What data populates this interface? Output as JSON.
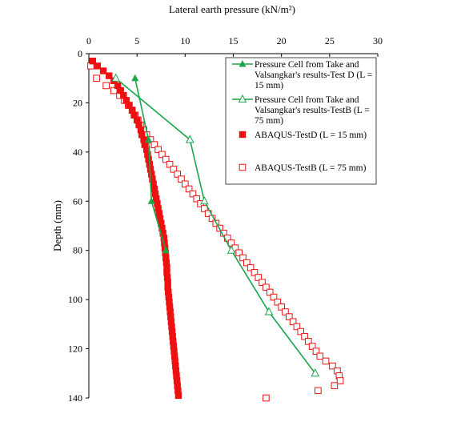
{
  "chart_data": {
    "type": "scatter",
    "xlabel": "Lateral earth pressure (kN/m²)",
    "ylabel": "Depth (mm)",
    "xlim": [
      0,
      30
    ],
    "ylim": [
      0,
      140
    ],
    "y_inverted": true,
    "x_axis_position": "top",
    "x_ticks": [
      "0",
      "5",
      "10",
      "15",
      "20",
      "25",
      "30"
    ],
    "y_ticks": [
      "0",
      "20",
      "40",
      "60",
      "80",
      "100",
      "120",
      "140"
    ],
    "grid": false,
    "legend_position": "top-right",
    "series": [
      {
        "name": "Pressure Cell from Take and Valsangkar's results-Test D (L = 15 mm)",
        "legend_lines": [
          "Pressure Cell from Take and",
          "Valsangkar's results-Test D (L =",
          "15 mm)"
        ],
        "marker": "filled-triangle",
        "line": true,
        "color": "#1aa64a",
        "points": [
          [
            4.8,
            10
          ],
          [
            6.2,
            35
          ],
          [
            6.5,
            60
          ],
          [
            8,
            80
          ]
        ]
      },
      {
        "name": "Pressure Cell from Take and Valsangkar's results-TestB (L = 75 mm)",
        "legend_lines": [
          "Pressure Cell from Take and",
          "Valsangkar's results-TestB (L =",
          "75 mm)"
        ],
        "marker": "open-triangle",
        "line": true,
        "color": "#1aa64a",
        "points": [
          [
            2.8,
            10
          ],
          [
            10.5,
            35
          ],
          [
            12,
            60
          ],
          [
            14.8,
            80
          ],
          [
            18.7,
            105
          ],
          [
            23.5,
            130
          ]
        ]
      },
      {
        "name": "ABAQUS-TestD (L = 15 mm)",
        "legend_lines": [
          "ABAQUS-TestD (L = 15 mm)"
        ],
        "marker": "filled-square",
        "line": false,
        "color": "#ee1111",
        "points": [
          [
            0.4,
            3
          ],
          [
            0.9,
            5
          ],
          [
            1.5,
            7
          ],
          [
            2.1,
            9
          ],
          [
            2.6,
            11
          ],
          [
            3.0,
            13
          ],
          [
            3.3,
            15
          ],
          [
            3.6,
            17
          ],
          [
            3.9,
            19
          ],
          [
            4.2,
            21
          ],
          [
            4.5,
            23
          ],
          [
            4.7,
            25
          ],
          [
            5.0,
            27
          ],
          [
            5.2,
            29
          ],
          [
            5.4,
            31
          ],
          [
            5.5,
            33
          ],
          [
            5.7,
            35
          ],
          [
            5.8,
            37
          ],
          [
            6.0,
            39
          ],
          [
            6.1,
            41
          ],
          [
            6.2,
            43
          ],
          [
            6.3,
            45
          ],
          [
            6.4,
            47
          ],
          [
            6.5,
            49
          ],
          [
            6.6,
            51
          ],
          [
            6.7,
            53
          ],
          [
            6.8,
            55
          ],
          [
            6.9,
            57
          ],
          [
            7.0,
            59
          ],
          [
            7.1,
            61
          ],
          [
            7.2,
            63
          ],
          [
            7.3,
            65
          ],
          [
            7.4,
            67
          ],
          [
            7.5,
            69
          ],
          [
            7.6,
            71
          ],
          [
            7.7,
            73
          ],
          [
            7.8,
            75
          ],
          [
            7.85,
            77
          ],
          [
            7.9,
            79
          ],
          [
            7.95,
            81
          ],
          [
            8.0,
            83
          ],
          [
            8.05,
            85
          ],
          [
            8.1,
            87
          ],
          [
            8.1,
            89
          ],
          [
            8.15,
            91
          ],
          [
            8.2,
            93
          ],
          [
            8.2,
            95
          ],
          [
            8.25,
            97
          ],
          [
            8.3,
            99
          ],
          [
            8.35,
            101
          ],
          [
            8.4,
            103
          ],
          [
            8.45,
            105
          ],
          [
            8.5,
            107
          ],
          [
            8.55,
            109
          ],
          [
            8.6,
            111
          ],
          [
            8.65,
            113
          ],
          [
            8.7,
            115
          ],
          [
            8.75,
            117
          ],
          [
            8.8,
            119
          ],
          [
            8.85,
            121
          ],
          [
            8.9,
            123
          ],
          [
            8.95,
            125
          ],
          [
            9.0,
            127
          ],
          [
            9.05,
            129
          ],
          [
            9.1,
            131
          ],
          [
            9.15,
            133
          ],
          [
            9.2,
            135
          ],
          [
            9.25,
            137
          ],
          [
            9.3,
            139
          ]
        ]
      },
      {
        "name": "ABAQUS-TestB (L = 75 mm)",
        "legend_lines": [
          "ABAQUS-TestB (L = 75 mm)"
        ],
        "marker": "open-square",
        "line": false,
        "color": "#ee1111",
        "points": [
          [
            0.2,
            5
          ],
          [
            0.8,
            10
          ],
          [
            1.8,
            13
          ],
          [
            2.6,
            15
          ],
          [
            3.2,
            17
          ],
          [
            3.7,
            19
          ],
          [
            4.1,
            21
          ],
          [
            4.5,
            23
          ],
          [
            4.8,
            25
          ],
          [
            5.1,
            27
          ],
          [
            5.4,
            29
          ],
          [
            5.7,
            31
          ],
          [
            6.0,
            33
          ],
          [
            6.4,
            35
          ],
          [
            6.8,
            37
          ],
          [
            7.2,
            39
          ],
          [
            7.6,
            41
          ],
          [
            8.0,
            43
          ],
          [
            8.4,
            45
          ],
          [
            8.8,
            47
          ],
          [
            9.2,
            49
          ],
          [
            9.6,
            51
          ],
          [
            10.0,
            53
          ],
          [
            10.4,
            55
          ],
          [
            10.8,
            57
          ],
          [
            11.2,
            59
          ],
          [
            11.6,
            61
          ],
          [
            12.0,
            63
          ],
          [
            12.4,
            65
          ],
          [
            12.8,
            67
          ],
          [
            13.2,
            69
          ],
          [
            13.6,
            71
          ],
          [
            14.0,
            73
          ],
          [
            14.4,
            75
          ],
          [
            14.8,
            77
          ],
          [
            15.2,
            79
          ],
          [
            15.6,
            81
          ],
          [
            16.0,
            83
          ],
          [
            16.4,
            85
          ],
          [
            16.8,
            87
          ],
          [
            17.2,
            89
          ],
          [
            17.6,
            91
          ],
          [
            18.0,
            93
          ],
          [
            18.4,
            95
          ],
          [
            18.8,
            97
          ],
          [
            19.2,
            99
          ],
          [
            19.6,
            101
          ],
          [
            20.0,
            103
          ],
          [
            20.4,
            105
          ],
          [
            20.8,
            107
          ],
          [
            21.2,
            109
          ],
          [
            21.6,
            111
          ],
          [
            22.0,
            113
          ],
          [
            22.4,
            115
          ],
          [
            22.8,
            117
          ],
          [
            23.2,
            119
          ],
          [
            23.6,
            121
          ],
          [
            24.0,
            123
          ],
          [
            24.6,
            125
          ],
          [
            25.3,
            127
          ],
          [
            25.8,
            129
          ],
          [
            26.0,
            131
          ],
          [
            26.1,
            133
          ],
          [
            25.5,
            135
          ],
          [
            23.8,
            137
          ],
          [
            18.4,
            140
          ]
        ]
      }
    ]
  }
}
